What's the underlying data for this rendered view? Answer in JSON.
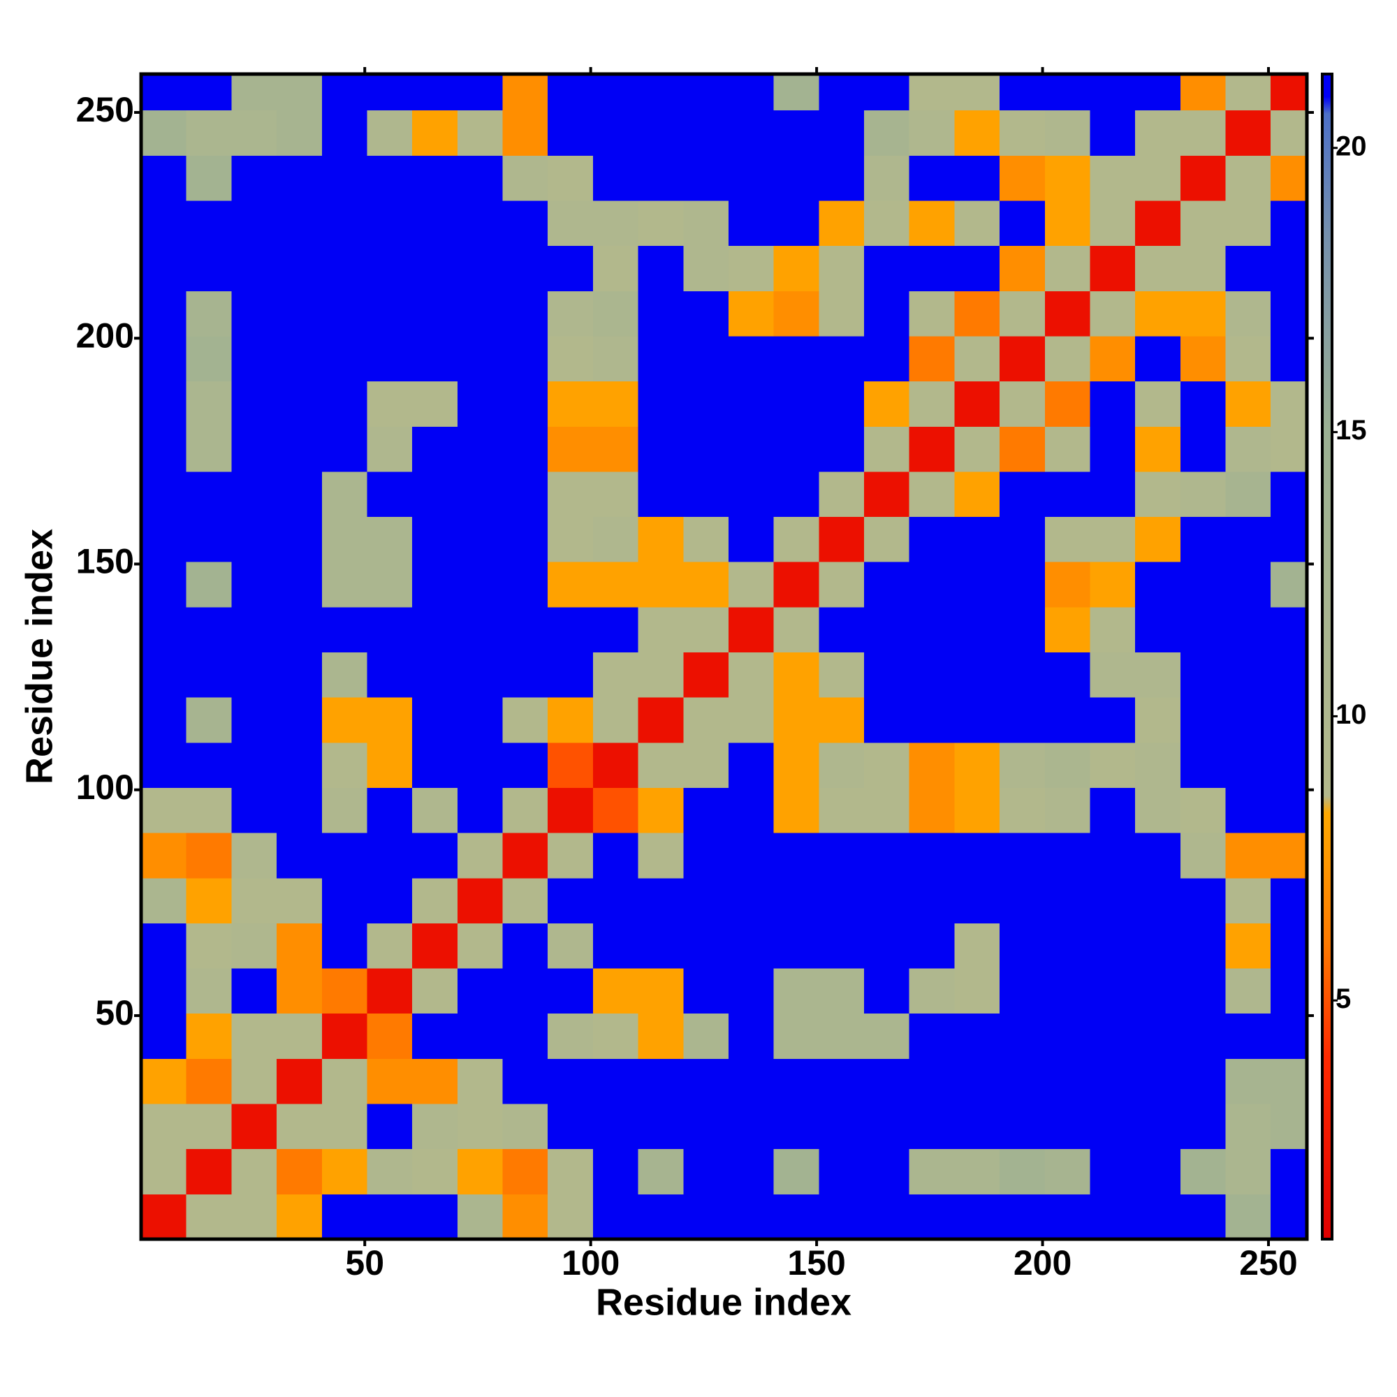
{
  "chart_data": {
    "type": "heatmap",
    "x_label": "Residue index",
    "y_label": "Residue index",
    "bins": [
      0.5,
      10.5,
      20.5,
      30.5,
      40.5,
      50.5,
      60.5,
      70.5,
      80.5,
      90.5,
      100.5,
      110.5,
      120.5,
      130.5,
      140.5,
      150.5,
      160.5,
      170.5,
      180.5,
      190.5,
      200.5,
      210.5,
      220.5,
      230.5,
      240.5,
      250.5,
      258.5
    ],
    "xlim": [
      0.5,
      258.5
    ],
    "ylim": [
      0.5,
      258.5
    ],
    "xticks": [
      50,
      100,
      150,
      200,
      250
    ],
    "yticks": [
      50,
      100,
      150,
      200,
      250
    ],
    "zlim": [
      0.8,
      21.3
    ],
    "zticks": [
      5,
      10,
      15,
      20
    ],
    "colorscale": [
      [
        0.8,
        "#e00000"
      ],
      [
        4,
        "#ff2a00"
      ],
      [
        6,
        "#ff7a00"
      ],
      [
        8.3,
        "#ffa800"
      ],
      [
        8.6,
        "#b4b98c"
      ],
      [
        15,
        "#9bb093"
      ],
      [
        18.5,
        "#7590ad"
      ],
      [
        20.6,
        "#4d70c8"
      ],
      [
        20.9,
        "#0000f5"
      ],
      [
        21.3,
        "#0000f5"
      ]
    ],
    "z": [
      [
        2,
        9,
        9,
        8,
        21,
        21,
        21,
        11,
        7,
        9,
        21,
        21,
        21,
        21,
        21,
        21,
        21,
        21,
        21,
        21,
        21,
        21,
        21,
        21,
        13,
        21
      ],
      [
        9,
        2,
        9,
        6,
        8,
        10,
        9,
        8,
        6,
        9,
        21,
        12,
        21,
        21,
        13,
        21,
        21,
        11,
        11,
        13,
        12,
        21,
        21,
        13,
        11,
        21
      ],
      [
        9,
        9,
        2,
        9,
        9,
        21,
        10,
        9,
        10,
        21,
        21,
        21,
        21,
        21,
        21,
        21,
        21,
        21,
        21,
        21,
        21,
        21,
        21,
        21,
        11,
        12
      ],
      [
        8,
        6,
        9,
        2,
        9,
        7,
        7,
        9,
        21,
        21,
        21,
        21,
        21,
        21,
        21,
        21,
        21,
        21,
        21,
        21,
        21,
        21,
        21,
        21,
        12,
        12
      ],
      [
        21,
        8,
        9,
        9,
        2,
        6,
        21,
        21,
        21,
        10,
        9,
        8,
        11,
        21,
        11,
        11,
        11,
        21,
        21,
        21,
        21,
        21,
        21,
        21,
        21,
        21
      ],
      [
        21,
        10,
        21,
        7,
        6,
        2,
        9,
        21,
        21,
        21,
        8,
        8,
        21,
        21,
        11,
        11,
        21,
        10,
        9,
        21,
        21,
        21,
        21,
        21,
        10,
        21
      ],
      [
        21,
        9,
        10,
        7,
        21,
        9,
        2,
        9,
        21,
        10,
        21,
        21,
        21,
        21,
        21,
        21,
        21,
        21,
        9,
        21,
        21,
        21,
        21,
        21,
        8,
        21
      ],
      [
        11,
        8,
        9,
        9,
        21,
        21,
        9,
        2,
        9,
        21,
        21,
        21,
        21,
        21,
        21,
        21,
        21,
        21,
        21,
        21,
        21,
        21,
        21,
        21,
        9,
        21
      ],
      [
        7,
        6,
        10,
        21,
        21,
        21,
        21,
        9,
        2,
        9,
        21,
        9,
        21,
        21,
        21,
        21,
        21,
        21,
        21,
        21,
        21,
        21,
        21,
        10,
        7,
        7
      ],
      [
        9,
        9,
        21,
        21,
        10,
        21,
        10,
        21,
        9,
        2,
        5,
        8,
        21,
        21,
        8,
        9,
        9,
        7,
        8,
        9,
        10,
        21,
        10,
        9,
        21,
        21
      ],
      [
        21,
        21,
        21,
        21,
        9,
        8,
        21,
        21,
        21,
        5,
        2,
        9,
        9,
        21,
        8,
        10,
        9,
        7,
        8,
        10,
        11,
        9,
        10,
        21,
        21,
        21
      ],
      [
        21,
        12,
        21,
        21,
        8,
        8,
        21,
        21,
        9,
        8,
        9,
        2,
        9,
        9,
        8,
        8,
        21,
        21,
        21,
        21,
        21,
        21,
        9,
        21,
        21,
        21
      ],
      [
        21,
        21,
        21,
        21,
        11,
        21,
        21,
        21,
        21,
        21,
        9,
        9,
        2,
        9,
        8,
        9,
        21,
        21,
        21,
        21,
        21,
        10,
        10,
        21,
        21,
        21
      ],
      [
        21,
        21,
        21,
        21,
        21,
        21,
        21,
        21,
        21,
        21,
        21,
        9,
        9,
        2,
        9,
        21,
        21,
        21,
        21,
        21,
        8,
        9,
        21,
        21,
        21,
        21
      ],
      [
        21,
        13,
        21,
        21,
        11,
        11,
        21,
        21,
        21,
        8,
        8,
        8,
        8,
        9,
        2,
        9,
        21,
        21,
        21,
        21,
        7,
        8,
        21,
        21,
        21,
        13
      ],
      [
        21,
        21,
        21,
        21,
        11,
        11,
        21,
        21,
        21,
        9,
        10,
        8,
        9,
        21,
        9,
        2,
        9,
        21,
        21,
        21,
        9,
        9,
        8,
        21,
        21,
        21
      ],
      [
        21,
        21,
        21,
        21,
        11,
        21,
        21,
        21,
        21,
        9,
        9,
        21,
        21,
        21,
        21,
        9,
        2,
        9,
        8,
        21,
        21,
        21,
        9,
        10,
        12,
        21
      ],
      [
        21,
        11,
        21,
        21,
        21,
        10,
        21,
        21,
        21,
        7,
        7,
        21,
        21,
        21,
        21,
        21,
        9,
        2,
        9,
        6,
        9,
        21,
        8,
        21,
        10,
        9
      ],
      [
        21,
        11,
        21,
        21,
        21,
        9,
        9,
        21,
        21,
        8,
        8,
        21,
        21,
        21,
        21,
        21,
        8,
        9,
        2,
        9,
        6,
        21,
        9,
        21,
        8,
        9
      ],
      [
        21,
        13,
        21,
        21,
        21,
        21,
        21,
        21,
        21,
        9,
        10,
        21,
        21,
        21,
        21,
        21,
        21,
        6,
        9,
        2,
        9,
        7,
        21,
        7,
        9,
        21
      ],
      [
        21,
        12,
        21,
        21,
        21,
        21,
        21,
        21,
        21,
        10,
        11,
        21,
        21,
        8,
        7,
        9,
        21,
        9,
        6,
        9,
        2,
        9,
        8,
        8,
        10,
        21
      ],
      [
        21,
        21,
        21,
        21,
        21,
        21,
        21,
        21,
        21,
        21,
        9,
        21,
        10,
        9,
        8,
        9,
        21,
        21,
        21,
        7,
        9,
        2,
        9,
        9,
        21,
        21
      ],
      [
        21,
        21,
        21,
        21,
        21,
        21,
        21,
        21,
        21,
        10,
        10,
        9,
        10,
        21,
        21,
        8,
        9,
        8,
        9,
        21,
        8,
        9,
        2,
        9,
        9,
        21
      ],
      [
        21,
        13,
        21,
        21,
        21,
        21,
        21,
        21,
        10,
        9,
        21,
        21,
        21,
        21,
        21,
        21,
        10,
        21,
        21,
        7,
        8,
        9,
        9,
        2,
        9,
        7
      ],
      [
        13,
        11,
        11,
        12,
        21,
        10,
        8,
        9,
        7,
        21,
        21,
        21,
        21,
        21,
        21,
        21,
        12,
        10,
        8,
        9,
        10,
        21,
        9,
        9,
        2,
        9
      ],
      [
        21,
        21,
        12,
        12,
        21,
        21,
        21,
        21,
        7,
        21,
        21,
        21,
        21,
        21,
        13,
        21,
        21,
        9,
        9,
        21,
        21,
        21,
        21,
        7,
        9,
        2
      ]
    ]
  }
}
